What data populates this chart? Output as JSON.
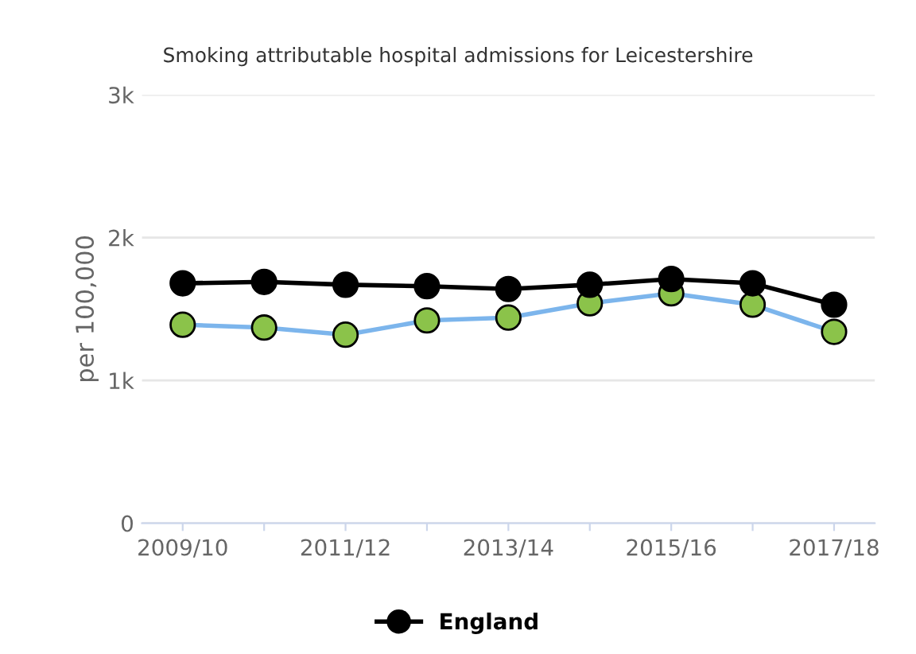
{
  "chart_data": {
    "type": "line",
    "subtitle": "Smoking attributable hospital admissions for Leicestershire",
    "ylabel": "per 100,000",
    "categories": [
      "2009/10",
      null,
      "2011/12",
      null,
      "2013/14",
      null,
      "2015/16",
      null,
      "2017/18"
    ],
    "series": [
      {
        "color": "#7cb5ec",
        "colors": [
          "#8bc34a",
          "#8bc34a",
          "#8bc34a",
          "#8bc34a",
          "#8bc34a",
          "#8bc34a",
          "#8bc34a",
          "#8bc34a",
          "#8bc34a"
        ],
        "values": [
          1390,
          1370,
          1320,
          1420,
          1440,
          1540,
          1610,
          1530,
          1340
        ]
      },
      {
        "name": "England",
        "color": "#000000",
        "values": [
          1680,
          1690,
          1670,
          1660,
          1640,
          1670,
          1710,
          1680,
          1530
        ]
      }
    ],
    "ylim": [
      0,
      3000
    ],
    "yticks": [
      0,
      {
        "value": 1000,
        "label": "1k"
      },
      {
        "value": 2000,
        "label": "2k"
      },
      {
        "value": 3000,
        "label": "3k"
      }
    ],
    "grid": "y",
    "legend": "bottom",
    "marker": "circle"
  }
}
